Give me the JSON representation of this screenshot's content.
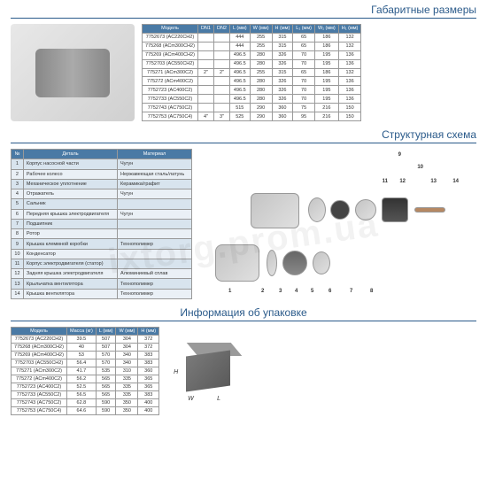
{
  "titles": {
    "dims": "Габаритные размеры",
    "scheme": "Структурная схема",
    "pack": "Информация об упаковке"
  },
  "watermark": "ixtorg.prom.ua",
  "dims_table": {
    "headers": [
      "Модель",
      "DN1",
      "DN2",
      "L (мм)",
      "W (мм)",
      "H (мм)",
      "L₁ (мм)",
      "W₁ (мм)",
      "H₁ (мм)"
    ],
    "rows": [
      [
        "7752673 (AC220CH2)",
        "",
        "",
        "444",
        "255",
        "315",
        "65",
        "186",
        "132"
      ],
      [
        "775268 (ACm300CH2)",
        "",
        "",
        "444",
        "255",
        "315",
        "65",
        "186",
        "132"
      ],
      [
        "775269 (ACm400CH2)",
        "",
        "",
        "496.5",
        "280",
        "326",
        "70",
        "195",
        "136"
      ],
      [
        "7752703 (AC550CH2)",
        "",
        "",
        "496.5",
        "280",
        "326",
        "70",
        "195",
        "136"
      ],
      [
        "775271 (ACm300C2)",
        "2\"",
        "2\"",
        "496.5",
        "255",
        "315",
        "65",
        "186",
        "132"
      ],
      [
        "775272 (ACm400C2)",
        "",
        "",
        "496.5",
        "280",
        "326",
        "70",
        "195",
        "136"
      ],
      [
        "7752723 (AC400C2)",
        "",
        "",
        "496.5",
        "280",
        "326",
        "70",
        "195",
        "136"
      ],
      [
        "7752733 (AC550C2)",
        "",
        "",
        "496.5",
        "280",
        "326",
        "70",
        "195",
        "136"
      ],
      [
        "7752743 (AC750C2)",
        "",
        "",
        "515",
        "290",
        "360",
        "75",
        "216",
        "150"
      ],
      [
        "7752753 (AC750C4)",
        "4\"",
        "3\"",
        "525",
        "290",
        "360",
        "95",
        "216",
        "150"
      ]
    ]
  },
  "parts_table": {
    "headers": [
      "№",
      "Деталь",
      "Материал"
    ],
    "rows": [
      [
        "1",
        "Корпус насосной части",
        "Чугун"
      ],
      [
        "2",
        "Рабочее колесо",
        "Нержавеющая сталь/латунь"
      ],
      [
        "3",
        "Механическое уплотнение",
        "Керамика/графит"
      ],
      [
        "4",
        "Отражатель",
        "Чугун"
      ],
      [
        "5",
        "Сальник",
        ""
      ],
      [
        "6",
        "Передняя крышка электродвигателя",
        "Чугун"
      ],
      [
        "7",
        "Подшипник",
        ""
      ],
      [
        "8",
        "Ротор",
        ""
      ],
      [
        "9",
        "Крышка клеммной коробки",
        "Технополимер"
      ],
      [
        "10",
        "Конденсатор",
        ""
      ],
      [
        "11",
        "Корпус электродвигателя (статор)",
        ""
      ],
      [
        "12",
        "Задняя крышка электродвигателя",
        "Алюминиевый сплав"
      ],
      [
        "13",
        "Крыльчатка вентилятора",
        "Технополимер"
      ],
      [
        "14",
        "Крышка вентилятора",
        "Технополимер"
      ]
    ]
  },
  "pack_table": {
    "headers": [
      "Модель",
      "Масса (кг)",
      "L (мм)",
      "W (мм)",
      "H (мм)"
    ],
    "rows": [
      [
        "7752673 (AC220CH2)",
        "39.5",
        "507",
        "304",
        "372"
      ],
      [
        "775268 (ACm300CH2)",
        "40",
        "507",
        "304",
        "372"
      ],
      [
        "775269 (ACm400CH2)",
        "53",
        "570",
        "340",
        "383"
      ],
      [
        "7752703 (AC550CH2)",
        "56.4",
        "570",
        "340",
        "383"
      ],
      [
        "775271 (ACm300C2)",
        "41.7",
        "535",
        "310",
        "360"
      ],
      [
        "775272 (ACm400C2)",
        "56.2",
        "565",
        "335",
        "365"
      ],
      [
        "7752723 (AC400C2)",
        "52.5",
        "565",
        "335",
        "365"
      ],
      [
        "7752733 (AC550C2)",
        "56.5",
        "565",
        "335",
        "383"
      ],
      [
        "7752743 (AC750C2)",
        "62.8",
        "590",
        "350",
        "400"
      ],
      [
        "7752753 (AC750C4)",
        "64.6",
        "590",
        "350",
        "400"
      ]
    ]
  },
  "callouts": [
    "9",
    "10",
    "11",
    "12",
    "13",
    "14",
    "1",
    "2",
    "3",
    "4",
    "5",
    "6",
    "7",
    "8"
  ],
  "box_labels": {
    "H": "H",
    "W": "W",
    "L": "L"
  }
}
